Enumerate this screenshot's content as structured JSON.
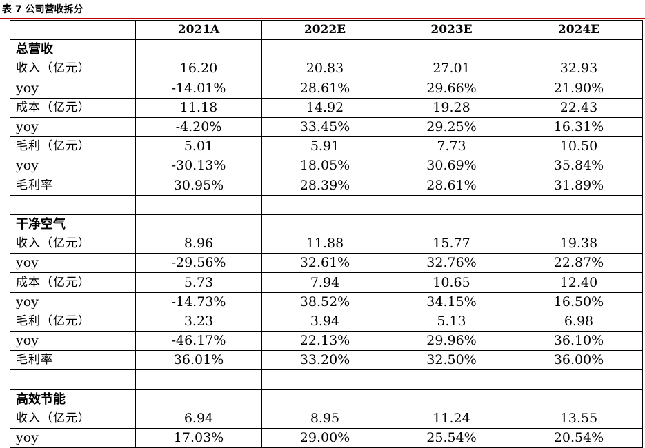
{
  "caption": "表 7 公司营收拆分",
  "columns": [
    "",
    "2021A",
    "2022E",
    "2023E",
    "2024E"
  ],
  "rows": [
    {
      "kind": "section",
      "label": "总营收",
      "values": [
        "",
        "",
        "",
        ""
      ]
    },
    {
      "kind": "data",
      "label": "收入（亿元）",
      "values": [
        "16.20",
        "20.83",
        "27.01",
        "32.93"
      ]
    },
    {
      "kind": "data",
      "label": "yoy",
      "values": [
        "-14.01%",
        "28.61%",
        "29.66%",
        "21.90%"
      ]
    },
    {
      "kind": "data",
      "label": "成本（亿元）",
      "values": [
        "11.18",
        "14.92",
        "19.28",
        "22.43"
      ]
    },
    {
      "kind": "data",
      "label": "yoy",
      "values": [
        "-4.20%",
        "33.45%",
        "29.25%",
        "16.31%"
      ]
    },
    {
      "kind": "data",
      "label": "毛利（亿元）",
      "values": [
        "5.01",
        "5.91",
        "7.73",
        "10.50"
      ]
    },
    {
      "kind": "data",
      "label": "yoy",
      "values": [
        "-30.13%",
        "18.05%",
        "30.69%",
        "35.84%"
      ]
    },
    {
      "kind": "data",
      "label": "毛利率",
      "values": [
        "30.95%",
        "28.39%",
        "28.61%",
        "31.89%"
      ]
    },
    {
      "kind": "blank",
      "label": "",
      "values": [
        "",
        "",
        "",
        ""
      ]
    },
    {
      "kind": "section",
      "label": "干净空气",
      "values": [
        "",
        "",
        "",
        ""
      ]
    },
    {
      "kind": "data",
      "label": "收入（亿元）",
      "values": [
        "8.96",
        "11.88",
        "15.77",
        "19.38"
      ]
    },
    {
      "kind": "data",
      "label": "yoy",
      "values": [
        "-29.56%",
        "32.61%",
        "32.76%",
        "22.87%"
      ]
    },
    {
      "kind": "data",
      "label": "成本（亿元）",
      "values": [
        "5.73",
        "7.94",
        "10.65",
        "12.40"
      ]
    },
    {
      "kind": "data",
      "label": "yoy",
      "values": [
        "-14.73%",
        "38.52%",
        "34.15%",
        "16.50%"
      ]
    },
    {
      "kind": "data",
      "label": "毛利（亿元）",
      "values": [
        "3.23",
        "3.94",
        "5.13",
        "6.98"
      ]
    },
    {
      "kind": "data",
      "label": "yoy",
      "values": [
        "-46.17%",
        "22.13%",
        "29.96%",
        "36.10%"
      ]
    },
    {
      "kind": "data",
      "label": "毛利率",
      "values": [
        "36.01%",
        "33.20%",
        "32.50%",
        "36.00%"
      ]
    },
    {
      "kind": "blank",
      "label": "",
      "values": [
        "",
        "",
        "",
        ""
      ]
    },
    {
      "kind": "section",
      "label": "高效节能",
      "values": [
        "",
        "",
        "",
        ""
      ]
    },
    {
      "kind": "data",
      "label": "收入（亿元）",
      "values": [
        "6.94",
        "8.95",
        "11.24",
        "13.55"
      ]
    },
    {
      "kind": "data",
      "label": "yoy",
      "values": [
        "17.03%",
        "29.00%",
        "25.54%",
        "20.54%"
      ]
    }
  ]
}
